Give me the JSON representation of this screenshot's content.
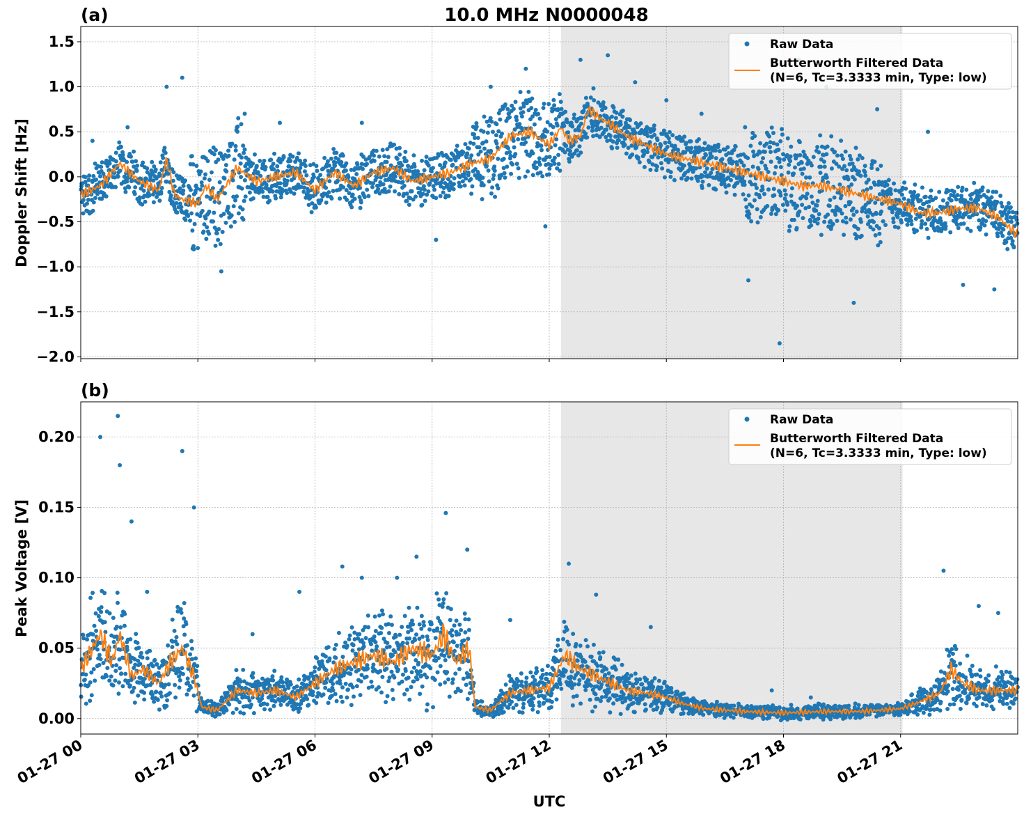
{
  "chart_data": [
    {
      "type": "scatter",
      "panel_label": "(a)",
      "title": "10.0 MHz N0000048",
      "ylabel": "Doppler Shift [Hz]",
      "xlim": [
        0,
        24
      ],
      "ylim": [
        -2.02,
        1.67
      ],
      "yticks": [
        1.5,
        1.0,
        0.5,
        0.0,
        -0.5,
        -1.0,
        -1.5,
        -2.0
      ],
      "ytick_labels": [
        "1.5",
        "1.0",
        "0.5",
        "0.0",
        "−0.5",
        "−1.0",
        "−1.5",
        "−2.0"
      ],
      "shaded_span_hours": [
        12.3,
        21.05
      ],
      "legend": {
        "position": "top-right",
        "raw_label": "Raw Data",
        "filtered_label_line1": "Butterworth Filtered Data",
        "filtered_label_line2": "(N=6, Tc=3.3333 min, Type: low)"
      },
      "series": [
        {
          "name": "Butterworth Filtered Data",
          "style": "line",
          "color": "#ff7f0e",
          "x": [
            0,
            0.5,
            1.0,
            1.5,
            2.0,
            2.2,
            2.4,
            2.6,
            3.0,
            3.2,
            3.5,
            4.0,
            4.5,
            5.0,
            5.5,
            6.0,
            6.5,
            7.0,
            7.5,
            8.0,
            8.5,
            9.0,
            9.5,
            10.0,
            10.5,
            11.0,
            11.5,
            12.0,
            12.3,
            12.5,
            12.8,
            13.0,
            13.3,
            13.5,
            14.0,
            14.5,
            15.0,
            15.5,
            16.0,
            16.5,
            17.0,
            17.5,
            18.0,
            18.5,
            19.0,
            19.5,
            20.0,
            20.5,
            21.0,
            21.5,
            22.0,
            22.5,
            23.0,
            23.5,
            24.0
          ],
          "y": [
            -0.2,
            -0.1,
            0.15,
            -0.05,
            -0.15,
            0.2,
            -0.2,
            -0.25,
            -0.3,
            -0.1,
            -0.25,
            0.1,
            -0.05,
            0.0,
            0.05,
            -0.15,
            0.05,
            -0.1,
            0.05,
            0.1,
            -0.05,
            0.0,
            0.05,
            0.15,
            0.2,
            0.45,
            0.5,
            0.35,
            0.55,
            0.4,
            0.45,
            0.75,
            0.65,
            0.6,
            0.45,
            0.35,
            0.25,
            0.2,
            0.15,
            0.1,
            0.05,
            0.0,
            -0.05,
            -0.1,
            -0.1,
            -0.15,
            -0.2,
            -0.25,
            -0.3,
            -0.4,
            -0.4,
            -0.35,
            -0.35,
            -0.45,
            -0.65
          ]
        },
        {
          "name": "Raw Data",
          "style": "markers",
          "color": "#1f77b4",
          "x": [
            0.3,
            1.2,
            2.2,
            2.6,
            3.6,
            4.2,
            5.1,
            7.2,
            9.1,
            10.5,
            11.4,
            11.9,
            12.8,
            13.5,
            14.2,
            15.0,
            15.9,
            17.1,
            17.9,
            18.4,
            19.1,
            19.8,
            20.4,
            21.7,
            22.6,
            23.4
          ],
          "y": [
            0.4,
            0.55,
            1.0,
            1.1,
            -1.05,
            0.7,
            0.6,
            0.6,
            -0.7,
            1.0,
            1.2,
            -0.55,
            1.3,
            1.35,
            1.05,
            0.85,
            0.7,
            -1.15,
            -1.85,
            1.3,
            1.0,
            -1.4,
            0.75,
            0.5,
            -1.2,
            -1.25
          ]
        }
      ]
    },
    {
      "type": "scatter",
      "panel_label": "(b)",
      "xlabel": "UTC",
      "ylabel": "Peak Voltage [V]",
      "xlim": [
        0,
        24
      ],
      "ylim": [
        -0.011,
        0.225
      ],
      "yticks": [
        0.2,
        0.15,
        0.1,
        0.05,
        0.0
      ],
      "ytick_labels": [
        "0.20",
        "0.15",
        "0.10",
        "0.05",
        "0.00"
      ],
      "xticks": [
        0,
        3,
        6,
        9,
        12,
        15,
        18,
        21
      ],
      "xtick_labels": [
        "01-27 00",
        "01-27 03",
        "01-27 06",
        "01-27 09",
        "01-27 12",
        "01-27 15",
        "01-27 18",
        "01-27 21"
      ],
      "shaded_span_hours": [
        12.3,
        21.05
      ],
      "legend": {
        "position": "top-right",
        "raw_label": "Raw Data",
        "filtered_label_line1": "Butterworth Filtered Data",
        "filtered_label_line2": "(N=6, Tc=3.3333 min, Type: low)"
      },
      "series": [
        {
          "name": "Butterworth Filtered Data",
          "style": "line",
          "color": "#ff7f0e",
          "x": [
            0,
            0.5,
            0.8,
            1.0,
            1.3,
            1.6,
            2.0,
            2.3,
            2.6,
            2.9,
            3.1,
            3.5,
            4.0,
            4.5,
            5.0,
            5.5,
            6.0,
            6.5,
            7.0,
            7.5,
            8.0,
            8.5,
            9.0,
            9.3,
            9.6,
            9.95,
            10.1,
            10.5,
            11.0,
            11.5,
            12.0,
            12.4,
            12.8,
            13.2,
            13.6,
            14.0,
            14.5,
            15.0,
            15.5,
            16.0,
            17.0,
            18.0,
            19.0,
            20.0,
            21.0,
            21.5,
            22.0,
            22.3,
            22.6,
            23.0,
            23.5,
            24.0
          ],
          "y": [
            0.035,
            0.06,
            0.04,
            0.06,
            0.03,
            0.035,
            0.025,
            0.04,
            0.05,
            0.03,
            0.008,
            0.006,
            0.02,
            0.018,
            0.02,
            0.015,
            0.025,
            0.035,
            0.04,
            0.045,
            0.04,
            0.05,
            0.045,
            0.06,
            0.04,
            0.05,
            0.008,
            0.006,
            0.018,
            0.02,
            0.022,
            0.045,
            0.035,
            0.03,
            0.025,
            0.02,
            0.018,
            0.015,
            0.01,
            0.007,
            0.005,
            0.004,
            0.005,
            0.005,
            0.007,
            0.012,
            0.018,
            0.035,
            0.025,
            0.02,
            0.02,
            0.02
          ]
        },
        {
          "name": "Raw Data",
          "style": "markers",
          "color": "#1f77b4",
          "x": [
            0.5,
            0.95,
            1.0,
            1.3,
            1.7,
            2.6,
            2.9,
            4.4,
            5.6,
            6.7,
            7.2,
            8.1,
            8.6,
            9.35,
            9.9,
            11.0,
            12.5,
            13.2,
            14.6,
            17.7,
            18.7,
            22.1,
            23.0,
            23.5
          ],
          "y": [
            0.2,
            0.215,
            0.18,
            0.14,
            0.09,
            0.19,
            0.15,
            0.06,
            0.09,
            0.108,
            0.1,
            0.1,
            0.115,
            0.146,
            0.12,
            0.07,
            0.11,
            0.088,
            0.065,
            0.02,
            0.015,
            0.105,
            0.08,
            0.075
          ]
        }
      ]
    }
  ]
}
